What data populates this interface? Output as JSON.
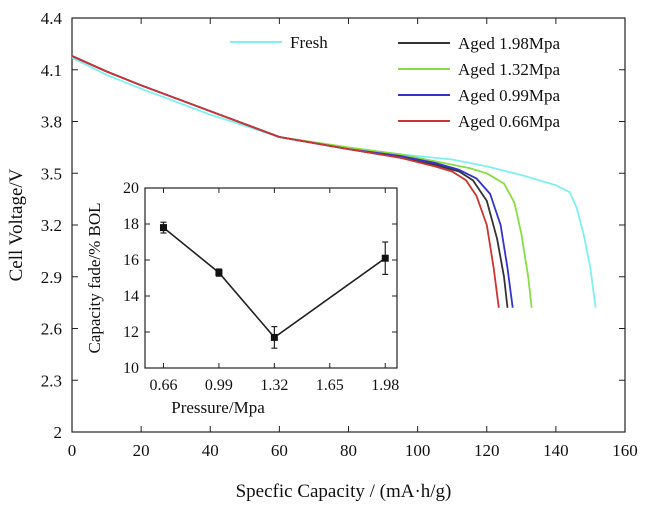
{
  "chart_data": [
    {
      "type": "line",
      "title": "",
      "xlabel": "Specfic Capacity / (mA·h/g)",
      "ylabel": "Cell Voltage/V",
      "xlim": [
        0,
        160
      ],
      "ylim": [
        2.0,
        4.4
      ],
      "xticks": [
        "0",
        "20",
        "40",
        "60",
        "80",
        "100",
        "120",
        "140",
        "160"
      ],
      "yticks": [
        "2",
        "2.3",
        "2.6",
        "2.9",
        "3.2",
        "3.5",
        "3.8",
        "4.1",
        "4.4"
      ],
      "grid": false,
      "legend_placement": "top-right",
      "series": [
        {
          "name": "Fresh",
          "color": "#7ff0f0",
          "x": [
            0,
            10,
            20,
            40,
            60,
            80,
            100,
            110,
            120,
            130,
            140,
            144,
            146,
            148,
            150,
            151.5
          ],
          "y": [
            4.17,
            4.07,
            3.99,
            3.84,
            3.71,
            3.64,
            3.6,
            3.58,
            3.54,
            3.49,
            3.43,
            3.39,
            3.3,
            3.15,
            2.95,
            2.72
          ]
        },
        {
          "name": "Aged 1.98Mpa",
          "color": "#333333",
          "x": [
            0,
            10,
            20,
            40,
            60,
            80,
            95,
            105,
            112,
            116,
            120,
            123,
            125,
            126
          ],
          "y": [
            4.18,
            4.09,
            4.01,
            3.86,
            3.71,
            3.64,
            3.59,
            3.55,
            3.51,
            3.46,
            3.34,
            3.12,
            2.9,
            2.72
          ]
        },
        {
          "name": "Aged 1.32Mpa",
          "color": "#88dd44",
          "x": [
            0,
            10,
            20,
            40,
            60,
            80,
            95,
            105,
            115,
            120,
            125,
            128,
            130,
            132,
            133
          ],
          "y": [
            4.18,
            4.09,
            4.01,
            3.86,
            3.71,
            3.65,
            3.61,
            3.57,
            3.53,
            3.5,
            3.44,
            3.33,
            3.15,
            2.9,
            2.72
          ]
        },
        {
          "name": "Aged 0.99Mpa",
          "color": "#3333cc",
          "x": [
            0,
            10,
            20,
            40,
            60,
            80,
            95,
            105,
            112,
            117,
            121,
            124,
            126,
            127.5
          ],
          "y": [
            4.18,
            4.09,
            4.01,
            3.86,
            3.71,
            3.64,
            3.6,
            3.56,
            3.52,
            3.47,
            3.38,
            3.2,
            2.95,
            2.72
          ]
        },
        {
          "name": "Aged 0.66Mpa",
          "color": "#cc3333",
          "x": [
            0,
            10,
            20,
            40,
            60,
            80,
            95,
            105,
            110,
            114,
            117,
            120,
            122,
            123.5
          ],
          "y": [
            4.18,
            4.09,
            4.01,
            3.86,
            3.71,
            3.64,
            3.59,
            3.54,
            3.51,
            3.46,
            3.37,
            3.2,
            2.95,
            2.72
          ]
        }
      ]
    },
    {
      "type": "line",
      "title": "",
      "xlabel": "Pressure/Mpa",
      "ylabel": "Capacity fade/% BOL",
      "xlim": [
        0.55,
        2.05
      ],
      "ylim": [
        10,
        20
      ],
      "xticks": [
        "0.66",
        "0.99",
        "1.32",
        "1.65",
        "1.98"
      ],
      "yticks": [
        "10",
        "12",
        "14",
        "16",
        "18",
        "20"
      ],
      "grid": false,
      "series": [
        {
          "color": "#222222",
          "x": [
            0.66,
            0.99,
            1.32,
            1.98
          ],
          "y": [
            17.8,
            15.3,
            11.7,
            16.1
          ],
          "error": [
            0.3,
            0.2,
            0.6,
            0.9
          ]
        }
      ]
    }
  ]
}
